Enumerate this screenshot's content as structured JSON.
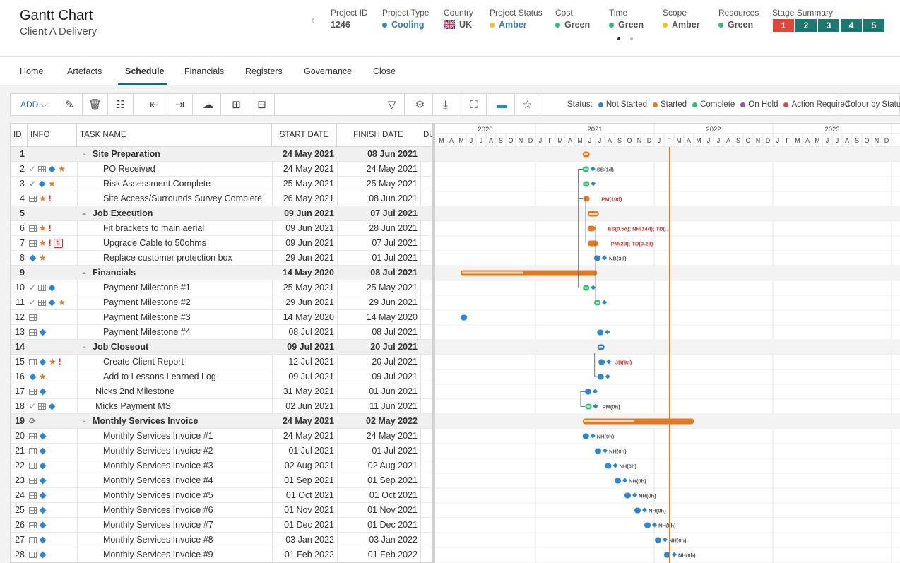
{
  "header": {
    "title": "Gantt Chart",
    "subtitle": "Client A Delivery",
    "kpis": [
      {
        "label": "Project ID",
        "value": "1246"
      },
      {
        "label": "Project Type",
        "value": "Cooling",
        "dot": "#2d86d0"
      },
      {
        "label": "Country",
        "value": "UK",
        "flag": "uk-flag"
      },
      {
        "label": "Project Status",
        "value": "Amber",
        "dot": "#f0c419"
      },
      {
        "label": "Cost",
        "value": "Green",
        "dot": "#2bbf6a"
      },
      {
        "label": "Time",
        "value": "Green",
        "dot": "#2bbf6a"
      },
      {
        "label": "Scope",
        "value": "Amber",
        "dot": "#f0c419"
      },
      {
        "label": "Resources",
        "value": "Green",
        "dot": "#2bbf6a"
      }
    ],
    "stage_summary": {
      "label": "Stage Summary",
      "stages": [
        {
          "label": "1",
          "color": "#e0473c"
        },
        {
          "label": "2",
          "color": "#1a7a72"
        },
        {
          "label": "3",
          "color": "#1a7a72"
        },
        {
          "label": "4",
          "color": "#1a7a72"
        },
        {
          "label": "5",
          "color": "#1a7a72"
        }
      ]
    }
  },
  "tabs": [
    "Home",
    "Artefacts",
    "Schedule",
    "Financials",
    "Registers",
    "Governance",
    "Close"
  ],
  "active_tab": "Schedule",
  "toolbar": {
    "add_label": "ADD",
    "status_label": "Status:",
    "legend": [
      {
        "label": "Not Started",
        "color": "#2d86d0"
      },
      {
        "label": "Started",
        "color": "#e07b24"
      },
      {
        "label": "Complete",
        "color": "#2bbf6a"
      },
      {
        "label": "On Hold",
        "color": "#9b4fc4"
      },
      {
        "label": "Action Required",
        "color": "#e0473c"
      }
    ],
    "colour_by": "Colour by Status"
  },
  "grid": {
    "columns": {
      "id": "ID",
      "info": "INFO",
      "name": "TASK NAME",
      "start": "START DATE",
      "finish": "FINISH DATE",
      "du": "DU"
    },
    "rows": [
      {
        "id": "1",
        "summary": true,
        "name": "Site Preparation",
        "start": "24 May 2021",
        "finish": "08 Jun 2021",
        "icons": []
      },
      {
        "id": "2",
        "name": "PO Received",
        "start": "24 May 2021",
        "finish": "24 May 2021",
        "icons": [
          "tick",
          "grid",
          "diamond",
          "star"
        ]
      },
      {
        "id": "3",
        "name": "Risk Assessment Complete",
        "start": "25 May 2021",
        "finish": "25 May 2021",
        "icons": [
          "tick",
          "diamond",
          "star"
        ]
      },
      {
        "id": "4",
        "name": "Site Access/Surrounds Survey Complete",
        "start": "26 May 2021",
        "finish": "08 Jun 2021",
        "icons": [
          "grid",
          "star",
          "excl"
        ]
      },
      {
        "id": "5",
        "summary": true,
        "name": "Job Execution",
        "start": "09 Jun 2021",
        "finish": "07 Jul 2021",
        "icons": []
      },
      {
        "id": "6",
        "name": "Fit brackets to main aerial",
        "start": "09 Jun 2021",
        "finish": "28 Jun 2021",
        "icons": [
          "grid",
          "star",
          "excl"
        ]
      },
      {
        "id": "7",
        "name": "Upgrade Cable to 50ohms",
        "start": "09 Jun 2021",
        "finish": "07 Jul 2021",
        "icons": [
          "grid",
          "star",
          "excl",
          "box"
        ]
      },
      {
        "id": "8",
        "name": "Replace customer protection box",
        "start": "29 Jun 2021",
        "finish": "01 Jul 2021",
        "icons": [
          "diamond",
          "star"
        ]
      },
      {
        "id": "9",
        "summary": true,
        "name": "Financials",
        "start": "14 May 2020",
        "finish": "08 Jul 2021",
        "icons": []
      },
      {
        "id": "10",
        "name": "Payment Milestone #1",
        "start": "25 May 2021",
        "finish": "25 May 2021",
        "icons": [
          "tick",
          "grid",
          "diamond"
        ]
      },
      {
        "id": "11",
        "name": "Payment Milestone #2",
        "start": "29 Jun 2021",
        "finish": "29 Jun 2021",
        "icons": [
          "tick",
          "grid",
          "diamond",
          "star"
        ]
      },
      {
        "id": "12",
        "name": "Payment Milestone #3",
        "start": "14 May 2020",
        "finish": "14 May 2020",
        "icons": [
          "grid"
        ]
      },
      {
        "id": "13",
        "name": "Payment Milestone #4",
        "start": "08 Jul 2021",
        "finish": "08 Jul 2021",
        "icons": [
          "grid",
          "diamond"
        ]
      },
      {
        "id": "14",
        "summary": true,
        "name": "Job Closeout",
        "start": "09 Jul 2021",
        "finish": "20 Jul 2021",
        "icons": []
      },
      {
        "id": "15",
        "name": "Create Client Report",
        "start": "12 Jul 2021",
        "finish": "20 Jul 2021",
        "icons": [
          "grid",
          "diamond",
          "star",
          "excl"
        ]
      },
      {
        "id": "16",
        "name": "Add to Lessons Learned Log",
        "start": "09 Jul 2021",
        "finish": "09 Jul 2021",
        "icons": [
          "diamond",
          "star"
        ]
      },
      {
        "id": "17",
        "name": "Nicks 2nd Milestone",
        "start": "31 May 2021",
        "finish": "01 Jun 2021",
        "icons": [
          "grid",
          "diamond"
        ],
        "top": true
      },
      {
        "id": "18",
        "name": "Micks Payment MS",
        "start": "02 Jun 2021",
        "finish": "11 Jun 2021",
        "icons": [
          "tick",
          "grid",
          "diamond"
        ],
        "top": true
      },
      {
        "id": "19",
        "summary": true,
        "name": "Monthly Services Invoice",
        "start": "24 May 2021",
        "finish": "02 May 2022",
        "icons": [
          "cycle"
        ]
      },
      {
        "id": "20",
        "name": "Monthly Services Invoice #1",
        "start": "24 May 2021",
        "finish": "24 May 2021",
        "icons": [
          "grid",
          "diamond"
        ]
      },
      {
        "id": "21",
        "name": "Monthly Services Invoice #2",
        "start": "01 Jul 2021",
        "finish": "01 Jul 2021",
        "icons": [
          "grid",
          "diamond"
        ]
      },
      {
        "id": "22",
        "name": "Monthly Services Invoice #3",
        "start": "02 Aug 2021",
        "finish": "02 Aug 2021",
        "icons": [
          "grid",
          "diamond"
        ]
      },
      {
        "id": "23",
        "name": "Monthly Services Invoice #4",
        "start": "01 Sep 2021",
        "finish": "01 Sep 2021",
        "icons": [
          "grid",
          "diamond"
        ]
      },
      {
        "id": "24",
        "name": "Monthly Services Invoice #5",
        "start": "01 Oct 2021",
        "finish": "01 Oct 2021",
        "icons": [
          "grid",
          "diamond"
        ]
      },
      {
        "id": "25",
        "name": "Monthly Services Invoice #6",
        "start": "01 Nov 2021",
        "finish": "01 Nov 2021",
        "icons": [
          "grid",
          "diamond"
        ]
      },
      {
        "id": "26",
        "name": "Monthly Services Invoice #7",
        "start": "01 Dec 2021",
        "finish": "01 Dec 2021",
        "icons": [
          "grid",
          "diamond"
        ]
      },
      {
        "id": "27",
        "name": "Monthly Services Invoice #8",
        "start": "03 Jan 2022",
        "finish": "03 Jan 2022",
        "icons": [
          "grid",
          "diamond"
        ]
      },
      {
        "id": "28",
        "name": "Monthly Services Invoice #9",
        "start": "01 Feb 2022",
        "finish": "01 Feb 2022",
        "icons": [
          "grid",
          "diamond"
        ]
      }
    ]
  },
  "gantt": {
    "years": [
      "2020",
      "2021",
      "2022",
      "2023"
    ],
    "months": [
      "M",
      "A",
      "M",
      "J",
      "J",
      "A",
      "S",
      "O",
      "N",
      "D",
      "J",
      "F",
      "M",
      "A",
      "M",
      "J",
      "J",
      "A",
      "S",
      "O",
      "N",
      "D",
      "J",
      "F",
      "M",
      "A",
      "M",
      "J",
      "J",
      "A",
      "S",
      "O",
      "N",
      "D",
      "J",
      "F",
      "M",
      "A",
      "M",
      "J",
      "J",
      "A",
      "S",
      "O",
      "N",
      "D"
    ],
    "bar_labels": [
      {
        "row": 1,
        "text": "SB(1d)",
        "color": "#555"
      },
      {
        "row": 3,
        "text": "PM(10d)",
        "color": "#d9302f"
      },
      {
        "row": 5,
        "text": "ES(0.5d); NH(14d); TD(...",
        "color": "#d9302f"
      },
      {
        "row": 6,
        "text": "PM(2d); TD(0.2d)",
        "color": "#d9302f"
      },
      {
        "row": 7,
        "text": "NB(3d)",
        "color": "#555"
      },
      {
        "row": 14,
        "text": "JB(9d)",
        "color": "#d9302f"
      },
      {
        "row": 17,
        "text": "PM(0h)",
        "color": "#555"
      },
      {
        "row": 19,
        "text": "NH(0h)",
        "color": "#555"
      },
      {
        "row": 20,
        "text": "NH(0h)",
        "color": "#555"
      },
      {
        "row": 21,
        "text": "NH(0h)",
        "color": "#555"
      },
      {
        "row": 22,
        "text": "NH(0h)",
        "color": "#555"
      },
      {
        "row": 23,
        "text": "NH(0h)",
        "color": "#555"
      },
      {
        "row": 24,
        "text": "NH(0h)",
        "color": "#555"
      },
      {
        "row": 25,
        "text": "NH(0h)",
        "color": "#555"
      },
      {
        "row": 26,
        "text": "NH(0h)",
        "color": "#555"
      },
      {
        "row": 27,
        "text": "NH(0h)",
        "color": "#555"
      }
    ],
    "colors": {
      "started": "#e07b24",
      "not_started": "#2d86d0",
      "complete": "#2bbf6a",
      "today": "#e07b24"
    }
  }
}
